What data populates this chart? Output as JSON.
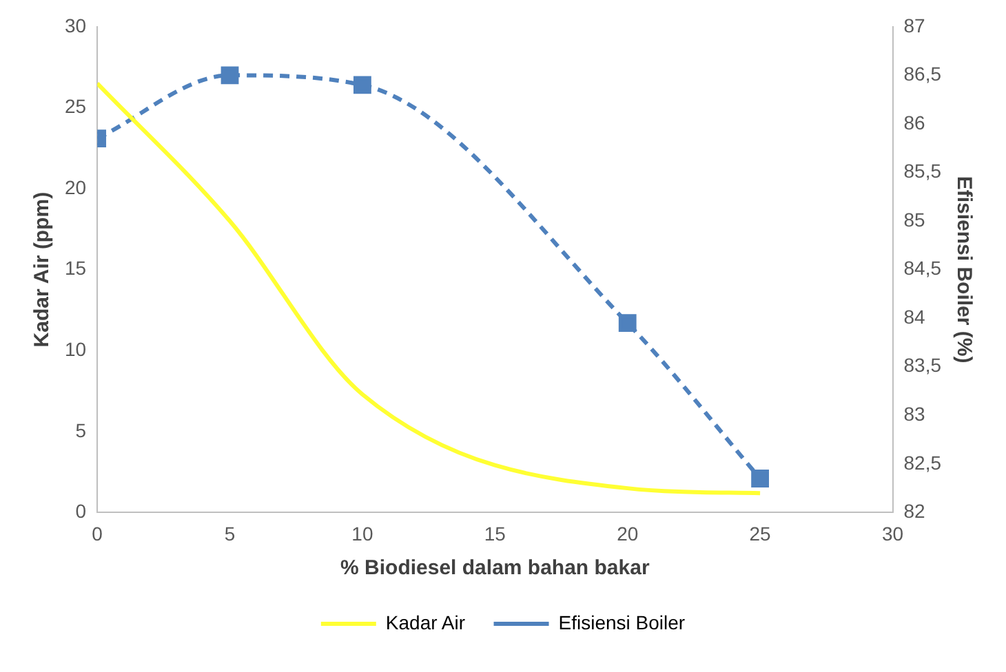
{
  "chart_data": {
    "type": "line",
    "xlabel": "% Biodiesel dalam bahan bakar",
    "ylabel": "Kadar Air (ppm)",
    "y2label": "Efisiensi Boiler (%)",
    "x": [
      0,
      5,
      10,
      20,
      25
    ],
    "series": [
      {
        "name": "Kadar Air",
        "color": "#ffff33",
        "values": [
          26.5,
          18,
          7.3,
          1.5,
          1.2
        ],
        "marker": "none",
        "line_style": "solid"
      },
      {
        "name": "Efisiensi Boiler",
        "color": "#4f81bd",
        "values": [
          85.85,
          86.5,
          86.4,
          83.95,
          82.35
        ],
        "axis": "y2",
        "marker": "square",
        "line_style": "dashed"
      }
    ],
    "xlim": [
      0,
      30
    ],
    "xticks": [
      0,
      5,
      10,
      15,
      20,
      25,
      30
    ],
    "ylim": [
      0,
      30
    ],
    "yticks": [
      0,
      5,
      10,
      15,
      20,
      25,
      30
    ],
    "y2lim": [
      82,
      87
    ],
    "y2ticks": [
      82,
      {
        "value": 82.5,
        "label": "82,5"
      },
      83,
      {
        "value": 83.5,
        "label": "83,5"
      },
      84,
      {
        "value": 84.5,
        "label": "84,5"
      },
      85,
      {
        "value": 85.5,
        "label": "85,5"
      },
      86,
      {
        "value": 86.5,
        "label": "86,5"
      },
      87
    ],
    "grid": false,
    "legend": "bottom"
  }
}
